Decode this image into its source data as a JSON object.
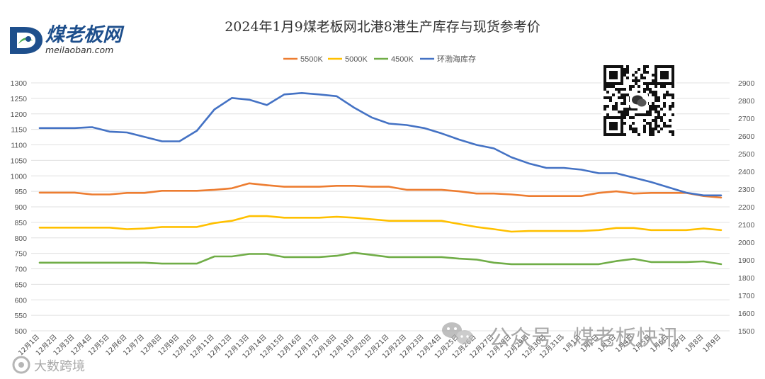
{
  "logo": {
    "name": "煤老板网",
    "url": "meilaoban.com"
  },
  "watermarks": {
    "wechat": "公众号 · 煤老板快讯",
    "corner": "大数跨境"
  },
  "colors": {
    "5500K": "#ed7d31",
    "5000K": "#ffc000",
    "4500K": "#70ad47",
    "环渤海库存": "#4472c4",
    "grid": "#e0e0e0"
  },
  "chart_data": {
    "type": "line",
    "title": "2024年1月9煤老板网北港8港生产库存与现货参考价",
    "legend_position": "top",
    "grid": true,
    "x": [
      "12月1日",
      "12月2日",
      "12月3日",
      "12月4日",
      "12月5日",
      "12月6日",
      "12月7日",
      "12月8日",
      "12月9日",
      "12月10日",
      "12月11日",
      "12月12日",
      "12月13日",
      "12月14日",
      "12月15日",
      "12月16日",
      "12月17日",
      "12月18日",
      "12月19日",
      "12月20日",
      "12月21日",
      "12月22日",
      "12月23日",
      "12月24日",
      "12月25日",
      "12月26日",
      "12月27日",
      "12月28日",
      "12月29日",
      "12月30日",
      "12月31日",
      "1月1日",
      "1月2日",
      "1月3日",
      "1月4日",
      "1月5日",
      "1月6日",
      "1月7日",
      "1月8日",
      "1月9日"
    ],
    "y_left": {
      "min": 500,
      "max": 1300,
      "step": 50
    },
    "y_right": {
      "min": 1500,
      "max": 2900,
      "step": 100
    },
    "series": [
      {
        "name": "5500K",
        "axis": "left",
        "values": [
          946,
          946,
          946,
          940,
          940,
          945,
          945,
          952,
          952,
          952,
          955,
          960,
          976,
          970,
          965,
          965,
          965,
          968,
          968,
          965,
          965,
          955,
          955,
          955,
          950,
          943,
          943,
          940,
          935,
          935,
          935,
          935,
          945,
          950,
          943,
          945,
          945,
          945,
          935,
          930
        ]
      },
      {
        "name": "5000K",
        "axis": "left",
        "values": [
          833,
          833,
          833,
          833,
          833,
          828,
          830,
          835,
          835,
          835,
          848,
          855,
          870,
          870,
          865,
          865,
          865,
          868,
          865,
          860,
          855,
          855,
          855,
          855,
          845,
          835,
          828,
          820,
          822,
          822,
          822,
          822,
          825,
          832,
          832,
          825,
          825,
          825,
          830,
          825
        ]
      },
      {
        "name": "4500K",
        "axis": "left",
        "values": [
          720,
          720,
          720,
          720,
          720,
          720,
          720,
          717,
          717,
          717,
          740,
          740,
          748,
          748,
          738,
          738,
          738,
          742,
          752,
          745,
          738,
          738,
          738,
          738,
          733,
          730,
          720,
          715,
          715,
          715,
          715,
          715,
          715,
          725,
          732,
          722,
          722,
          722,
          724,
          715
        ]
      },
      {
        "name": "环渤海库存",
        "axis": "right",
        "values": [
          2645,
          2645,
          2645,
          2650,
          2625,
          2620,
          2595,
          2570,
          2570,
          2630,
          2750,
          2815,
          2805,
          2775,
          2835,
          2843,
          2835,
          2825,
          2760,
          2705,
          2670,
          2662,
          2645,
          2615,
          2580,
          2550,
          2530,
          2480,
          2445,
          2420,
          2420,
          2410,
          2390,
          2390,
          2365,
          2340,
          2310,
          2280,
          2265,
          2265
        ]
      }
    ]
  }
}
